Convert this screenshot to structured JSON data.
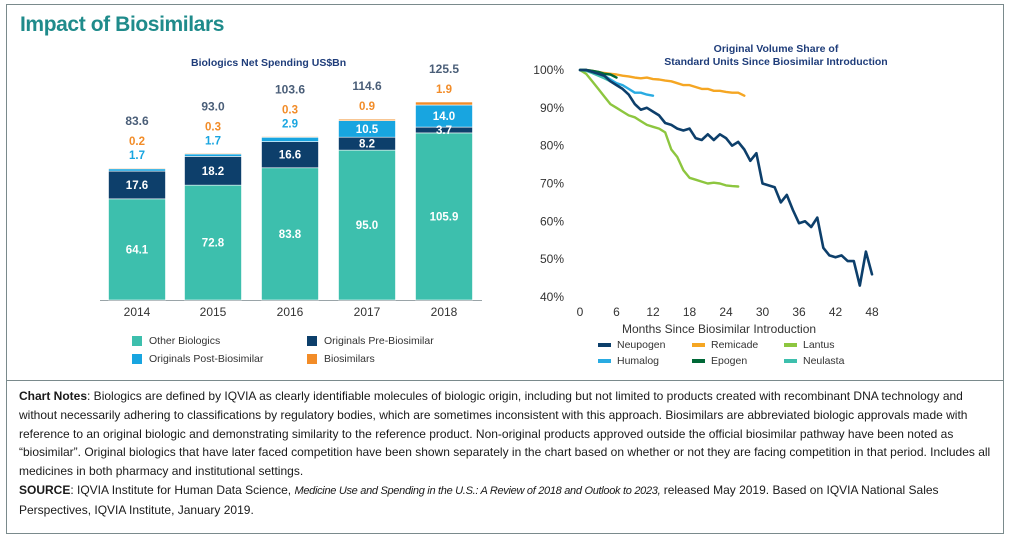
{
  "title": "Impact of Biosimilars",
  "bar_chart_title": "Biologics Net Spending US$Bn",
  "line_chart_title_line1": "Original Volume Share of",
  "line_chart_title_line2": "Standard Units Since Biosimilar Introduction",
  "colors": {
    "title": "#1f8b8b",
    "chart_title": "#1f3d7a",
    "other_biologics": "#3dbfad",
    "originals_pre": "#0d3f6b",
    "originals_post": "#18a5e0",
    "biosimilars": "#f28c28",
    "total_label": "#4a5e78",
    "neupogen": "#0d3f6b",
    "remicade": "#f5a623",
    "lantus": "#8dc63f",
    "humalog": "#29abe2",
    "epogen": "#006837",
    "neulasta": "#3dbfad"
  },
  "chart_data": [
    {
      "type": "bar",
      "stacked": true,
      "title": "Biologics Net Spending US$Bn",
      "categories": [
        "2014",
        "2015",
        "2016",
        "2017",
        "2018"
      ],
      "series": [
        {
          "name": "Other Biologics",
          "values": [
            64.1,
            72.8,
            83.8,
            95.0,
            105.9
          ],
          "labels": [
            "64.1",
            "72.8",
            "83.8",
            "95.0",
            "105.9"
          ]
        },
        {
          "name": "Originals Pre-Biosimilar",
          "values": [
            17.6,
            18.2,
            16.6,
            8.2,
            3.7
          ],
          "labels": [
            "17.6",
            "18.2",
            "16.6",
            "8.2",
            "3.7"
          ]
        },
        {
          "name": "Originals Post-Biosimilar",
          "values": [
            1.7,
            1.7,
            2.9,
            10.5,
            14.0
          ],
          "labels": [
            "1.7",
            "1.7",
            "2.9",
            "10.5",
            "14.0"
          ]
        },
        {
          "name": "Biosimilars",
          "values": [
            0.2,
            0.3,
            0.3,
            0.9,
            1.9
          ],
          "labels": [
            "0.2",
            "0.3",
            "0.3",
            "0.9",
            "1.9"
          ]
        }
      ],
      "totals": [
        "83.6",
        "93.0",
        "103.6",
        "114.6",
        "125.5"
      ],
      "ylim": [
        0,
        130
      ],
      "legend": "bottom"
    },
    {
      "type": "line",
      "title": "Original Volume Share of Standard Units Since Biosimilar Introduction",
      "xlabel": "Months Since Biosimilar Introduction",
      "ylabel": "",
      "xlim": [
        0,
        50
      ],
      "ylim": [
        40,
        100
      ],
      "xticks": [
        "0",
        "6",
        "12",
        "18",
        "24",
        "30",
        "36",
        "42",
        "48"
      ],
      "yticks": [
        "40%",
        "50%",
        "60%",
        "70%",
        "80%",
        "90%",
        "100%"
      ],
      "legend": "bottom",
      "series": [
        {
          "name": "Neupogen",
          "x": [
            0,
            1,
            2,
            3,
            4,
            5,
            6,
            7,
            8,
            9,
            10,
            11,
            12,
            13,
            14,
            15,
            16,
            17,
            18,
            19,
            20,
            21,
            22,
            23,
            24,
            25,
            26,
            27,
            28,
            29,
            30,
            31,
            32,
            33,
            34,
            35,
            36,
            37,
            38,
            39,
            40,
            41,
            42,
            43,
            44,
            45,
            46,
            47,
            48,
            49
          ],
          "y": [
            100,
            100,
            99.5,
            99,
            98.5,
            97,
            96,
            95,
            93.5,
            91,
            89.5,
            90,
            89,
            88,
            86,
            85.5,
            84.5,
            84,
            84.5,
            82,
            81.5,
            83,
            81.5,
            83,
            82,
            80,
            81,
            79,
            76,
            78,
            70,
            69.5,
            69,
            65,
            67,
            63,
            59.5,
            60,
            58.5,
            61,
            53,
            51,
            50.5,
            51,
            49.5,
            49.5,
            43,
            52,
            46,
            null
          ]
        },
        {
          "name": "Remicade",
          "x": [
            0,
            1,
            2,
            3,
            4,
            5,
            6,
            7,
            8,
            9,
            10,
            11,
            12,
            13,
            14,
            15,
            16,
            17,
            18,
            19,
            20,
            21,
            22,
            23,
            24,
            25,
            26,
            27
          ],
          "y": [
            100,
            100,
            99.8,
            99.5,
            99.2,
            99,
            98.8,
            98.5,
            98.3,
            98,
            97.8,
            98,
            97.6,
            97.5,
            97.2,
            97,
            96.5,
            96,
            96,
            95.5,
            95,
            95,
            94.5,
            94.5,
            94.2,
            94,
            94,
            93.2
          ]
        },
        {
          "name": "Lantus",
          "x": [
            0,
            1,
            2,
            3,
            4,
            5,
            6,
            7,
            8,
            9,
            10,
            11,
            12,
            13,
            14,
            15,
            16,
            17,
            18,
            19,
            20,
            21,
            22,
            23,
            24,
            25,
            26
          ],
          "y": [
            100,
            99,
            97,
            95,
            93,
            91,
            90,
            89,
            88,
            87.5,
            86.5,
            85.5,
            85,
            84.5,
            83.5,
            79,
            77,
            73.5,
            71.5,
            71,
            70.5,
            70,
            70.2,
            70,
            69.5,
            69.3,
            69.2
          ]
        },
        {
          "name": "Humalog",
          "x": [
            0,
            1,
            2,
            3,
            4,
            5,
            6,
            7,
            8,
            9,
            10,
            11,
            12
          ],
          "y": [
            100,
            100,
            99.5,
            99,
            98.5,
            97.5,
            96.5,
            96,
            95,
            94,
            94,
            93.5,
            93.2
          ]
        },
        {
          "name": "Epogen",
          "x": [
            0,
            1,
            2,
            3,
            4,
            5,
            6
          ],
          "y": [
            100,
            100,
            99.8,
            99.5,
            99,
            98.8,
            98
          ]
        },
        {
          "name": "Neulasta",
          "x": [
            0,
            1,
            2,
            3,
            4,
            5
          ],
          "y": [
            100,
            99.8,
            99.2,
            98.5,
            97.8,
            97
          ]
        }
      ]
    }
  ],
  "legend_bar": [
    "Other Biologics",
    "Originals Pre-Biosimilar",
    "Originals Post-Biosimilar",
    "Biosimilars"
  ],
  "legend_line": [
    "Neupogen",
    "Remicade",
    "Lantus",
    "Humalog",
    "Epogen",
    "Neulasta"
  ],
  "notes": {
    "chart_notes_label": "Chart Notes",
    "chart_notes_text": ": Biologics are defined by IQVIA as clearly identifiable molecules of biologic origin, including but not limited to products created with recombinant DNA technology and without necessarily adhering to classifications by regulatory bodies, which are sometimes inconsistent with this approach. Biosimilars are abbreviated biologic approvals made with reference to an original biologic and demonstrating similarity to the reference product. Non-original products approved outside the official biosimilar pathway have been noted as “biosimilar”. Original biologics that have later faced competition have been shown separately in the chart based on whether or not they are facing competition in that period. Includes all medicines in both pharmacy and institutional settings.",
    "source_label": "SOURCE",
    "source_text_1": ": IQVIA Institute for Human Data Science, ",
    "source_italic": "Medicine Use and Spending in the U.S.: A Review of 2018 and Outlook to 2023,",
    "source_text_2": " released May 2019. Based on IQVIA National Sales Perspectives, IQVIA Institute, January 2019."
  }
}
